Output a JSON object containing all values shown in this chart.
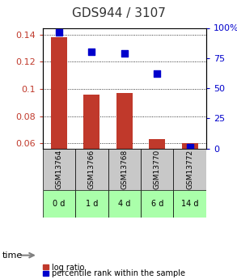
{
  "title": "GDS944 / 3107",
  "samples": [
    "GSM13764",
    "GSM13766",
    "GSM13768",
    "GSM13770",
    "GSM13772"
  ],
  "time_labels": [
    "0 d",
    "1 d",
    "4 d",
    "6 d",
    "14 d"
  ],
  "log_ratio": [
    0.138,
    0.096,
    0.097,
    0.063,
    0.06
  ],
  "percentile_rank": [
    96,
    80,
    79,
    62,
    1
  ],
  "ylim_left": [
    0.056,
    0.145
  ],
  "ylim_right": [
    0,
    105
  ],
  "bar_color": "#C0392B",
  "dot_color": "#0000CC",
  "title_color": "#333333",
  "left_tick_color": "#C0392B",
  "right_tick_color": "#0000CC",
  "grid_color": "#000000",
  "cell_bg_gray": "#C8C8C8",
  "cell_bg_green": "#AAFFAA",
  "bar_width": 0.5,
  "yticks_left": [
    0.06,
    0.08,
    0.1,
    0.12,
    0.14
  ],
  "yticks_right": [
    0,
    25,
    50,
    75,
    100
  ],
  "ytick_labels_right": [
    "0",
    "25",
    "50",
    "75",
    "100%"
  ]
}
